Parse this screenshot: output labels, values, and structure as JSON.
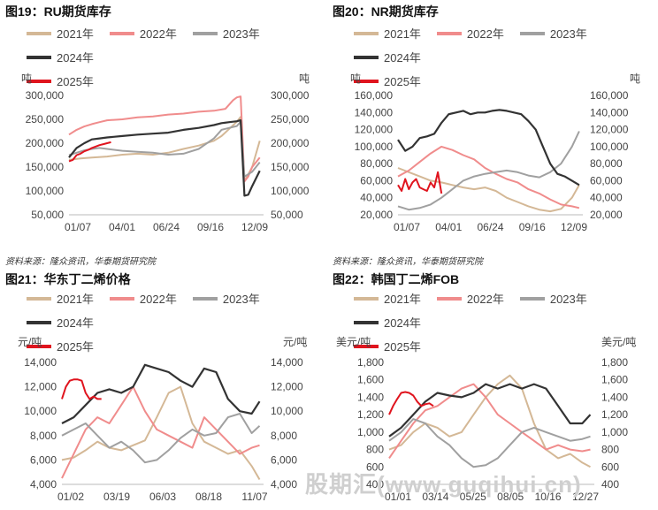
{
  "colors": {
    "2021": "#d4b896",
    "2022": "#f08c8c",
    "2023": "#a0a0a0",
    "2024": "#333333",
    "2025": "#e0141e"
  },
  "sources": [
    "资料来源：隆众资讯，华泰期货研究院",
    "资料来源：隆众资讯，华泰期货研究院"
  ],
  "watermark": "股期汇(www.guqihui.cn)",
  "chart_data": [
    {
      "type": "line",
      "title": "图19：RU期货库存",
      "unit_left": "吨",
      "unit_right": "吨",
      "legend": [
        "2021年",
        "2022年",
        "2023年",
        "2024年",
        "2025年"
      ],
      "ylim": [
        50000,
        300000
      ],
      "yticks": [
        "300,000",
        "250,000",
        "200,000",
        "150,000",
        "100,000",
        "50,000"
      ],
      "xticks": [
        "01/07",
        "04/01",
        "06/24",
        "09/16",
        "12/09"
      ],
      "xlim": [
        0,
        51
      ],
      "series": [
        {
          "name": "2021年",
          "x": [
            0,
            3,
            6,
            10,
            14,
            18,
            22,
            26,
            30,
            34,
            38,
            40,
            42,
            44,
            45,
            46,
            48,
            50
          ],
          "values": [
            165000,
            168000,
            170000,
            172000,
            176000,
            178000,
            176000,
            180000,
            188000,
            195000,
            205000,
            215000,
            230000,
            245000,
            255000,
            120000,
            150000,
            205000
          ]
        },
        {
          "name": "2022年",
          "x": [
            0,
            2,
            4,
            6,
            8,
            10,
            14,
            18,
            22,
            26,
            30,
            34,
            38,
            41,
            43,
            44,
            45,
            46,
            47,
            48,
            50
          ],
          "values": [
            218000,
            228000,
            235000,
            240000,
            244000,
            248000,
            250000,
            254000,
            256000,
            260000,
            262000,
            266000,
            268000,
            272000,
            290000,
            296000,
            298000,
            120000,
            130000,
            150000,
            170000
          ]
        },
        {
          "name": "2023年",
          "x": [
            0,
            2,
            4,
            6,
            8,
            10,
            14,
            18,
            22,
            26,
            30,
            34,
            38,
            40,
            42,
            44,
            45,
            46,
            48,
            50
          ],
          "values": [
            175000,
            180000,
            185000,
            188000,
            190000,
            188000,
            184000,
            182000,
            180000,
            176000,
            178000,
            188000,
            210000,
            228000,
            232000,
            236000,
            245000,
            130000,
            140000,
            160000
          ]
        },
        {
          "name": "2024年",
          "x": [
            0,
            2,
            4,
            6,
            8,
            10,
            14,
            18,
            22,
            26,
            30,
            34,
            38,
            40,
            42,
            44,
            45,
            46,
            47,
            48,
            50
          ],
          "values": [
            170000,
            190000,
            200000,
            208000,
            210000,
            212000,
            215000,
            218000,
            220000,
            222000,
            228000,
            232000,
            238000,
            242000,
            244000,
            246000,
            248000,
            90000,
            92000,
            110000,
            142000
          ]
        },
        {
          "name": "2025年",
          "x": [
            0,
            1,
            2,
            3,
            4,
            5,
            6,
            7,
            8,
            9,
            10,
            11
          ],
          "values": [
            162000,
            165000,
            175000,
            178000,
            183000,
            186000,
            190000,
            193000,
            196000,
            198000,
            200000,
            202000
          ]
        }
      ]
    },
    {
      "type": "line",
      "title": "图20：NR期货库存",
      "unit_left": "吨",
      "unit_right": "吨",
      "legend": [
        "2021年",
        "2022年",
        "2023年",
        "2024年",
        "2025年"
      ],
      "ylim": [
        20000,
        160000
      ],
      "yticks": [
        "160,000",
        "140,000",
        "120,000",
        "100,000",
        "80,000",
        "60,000",
        "40,000",
        "20,000"
      ],
      "xticks": [
        "01/07",
        "04/01",
        "06/24",
        "09/16",
        "12/09"
      ],
      "xlim": [
        0,
        51
      ],
      "series": [
        {
          "name": "2021年",
          "x": [
            0,
            3,
            6,
            9,
            12,
            15,
            18,
            21,
            24,
            27,
            30,
            33,
            36,
            39,
            42,
            45,
            48,
            50
          ],
          "values": [
            75000,
            70000,
            65000,
            60000,
            58000,
            55000,
            52000,
            50000,
            52000,
            48000,
            40000,
            35000,
            30000,
            26000,
            24000,
            27000,
            40000,
            55000
          ]
        },
        {
          "name": "2022年",
          "x": [
            0,
            3,
            6,
            9,
            12,
            15,
            18,
            21,
            24,
            27,
            30,
            33,
            36,
            39,
            42,
            45,
            48,
            50
          ],
          "values": [
            65000,
            72000,
            82000,
            92000,
            100000,
            96000,
            90000,
            85000,
            75000,
            68000,
            62000,
            58000,
            50000,
            45000,
            38000,
            32000,
            30000,
            28000
          ]
        },
        {
          "name": "2023年",
          "x": [
            0,
            3,
            6,
            9,
            12,
            15,
            18,
            21,
            24,
            27,
            30,
            33,
            36,
            39,
            42,
            45,
            48,
            50
          ],
          "values": [
            30000,
            26000,
            28000,
            32000,
            40000,
            50000,
            60000,
            65000,
            68000,
            70000,
            72000,
            70000,
            66000,
            64000,
            70000,
            80000,
            100000,
            118000
          ]
        },
        {
          "name": "2024年",
          "x": [
            0,
            2,
            4,
            6,
            8,
            10,
            12,
            14,
            16,
            18,
            20,
            22,
            24,
            26,
            28,
            30,
            32,
            34,
            36,
            38,
            40,
            42,
            44,
            46,
            48,
            50
          ],
          "values": [
            108000,
            95000,
            100000,
            110000,
            112000,
            115000,
            128000,
            138000,
            140000,
            142000,
            138000,
            140000,
            140000,
            142000,
            143000,
            142000,
            140000,
            138000,
            130000,
            120000,
            100000,
            80000,
            68000,
            65000,
            60000,
            55000
          ]
        },
        {
          "name": "2025年",
          "x": [
            0,
            1,
            2,
            3,
            4,
            5,
            6,
            7,
            8,
            9,
            10,
            11,
            12
          ],
          "values": [
            55000,
            48000,
            62000,
            50000,
            58000,
            62000,
            52000,
            50000,
            48000,
            58000,
            52000,
            70000,
            45000
          ]
        }
      ]
    },
    {
      "type": "line",
      "title": "图21：华东丁二烯价格",
      "unit_left": "元/吨",
      "unit_right": "元/吨",
      "legend": [
        "2021年",
        "2022年",
        "2023年",
        "2024年",
        "2025年"
      ],
      "ylim": [
        4000,
        14000
      ],
      "yticks": [
        "14,000",
        "12,000",
        "10,000",
        "8,000",
        "6,000",
        "4,000"
      ],
      "xticks": [
        "01/02",
        "03/19",
        "06/03",
        "08/18",
        "11/07"
      ],
      "xlim": [
        0,
        51
      ],
      "series": [
        {
          "name": "2021年",
          "x": [
            0,
            3,
            6,
            9,
            12,
            15,
            18,
            21,
            24,
            27,
            30,
            33,
            36,
            39,
            42,
            45,
            48,
            50
          ],
          "values": [
            6000,
            6200,
            6800,
            7500,
            7000,
            6800,
            7200,
            7600,
            9500,
            11500,
            12000,
            9000,
            7500,
            7000,
            6500,
            6800,
            5500,
            4400
          ]
        },
        {
          "name": "2022年",
          "x": [
            0,
            3,
            6,
            9,
            12,
            15,
            18,
            21,
            24,
            27,
            30,
            33,
            36,
            39,
            42,
            45,
            48,
            50
          ],
          "values": [
            4500,
            6500,
            8500,
            9500,
            9000,
            10500,
            12000,
            10000,
            8500,
            8000,
            7500,
            7000,
            9500,
            8500,
            7500,
            6500,
            7000,
            7200
          ]
        },
        {
          "name": "2023年",
          "x": [
            0,
            3,
            6,
            9,
            12,
            15,
            18,
            21,
            24,
            27,
            30,
            33,
            36,
            39,
            42,
            45,
            48,
            50
          ],
          "values": [
            8000,
            8500,
            9000,
            8000,
            7000,
            7500,
            6800,
            5800,
            6000,
            6800,
            7800,
            8500,
            8000,
            8200,
            9500,
            9800,
            8200,
            8800
          ]
        },
        {
          "name": "2024年",
          "x": [
            0,
            3,
            6,
            9,
            12,
            15,
            18,
            21,
            24,
            27,
            30,
            33,
            36,
            39,
            42,
            45,
            48,
            50
          ],
          "values": [
            9000,
            9500,
            10500,
            11500,
            11800,
            11500,
            12000,
            13800,
            13500,
            13200,
            12500,
            12000,
            13500,
            13200,
            11000,
            10000,
            9800,
            10800
          ]
        },
        {
          "name": "2025年",
          "x": [
            0,
            1,
            2,
            3,
            4,
            5,
            6,
            7,
            8,
            9,
            10
          ],
          "values": [
            11000,
            12000,
            12500,
            12600,
            12600,
            12500,
            11500,
            11000,
            11200,
            11000,
            11000
          ]
        }
      ]
    },
    {
      "type": "line",
      "title": "图22：韩国丁二烯FOB",
      "unit_left": "美元/吨",
      "unit_right": "美元/吨",
      "legend": [
        "2021年",
        "2022年",
        "2023年",
        "2024年",
        "2025年"
      ],
      "ylim": [
        400,
        1800
      ],
      "yticks": [
        "1,800",
        "1,600",
        "1,400",
        "1,200",
        "1,000",
        "800",
        "600",
        "400"
      ],
      "xticks": [
        "01/01",
        "03/14",
        "05/25",
        "08/05",
        "10/16",
        "12/27"
      ],
      "xlim": [
        0,
        51
      ],
      "series": [
        {
          "name": "2021年",
          "x": [
            0,
            3,
            6,
            9,
            12,
            15,
            18,
            21,
            24,
            27,
            30,
            33,
            36,
            39,
            42,
            45,
            48,
            50
          ],
          "values": [
            800,
            850,
            1000,
            1100,
            1050,
            950,
            1000,
            1200,
            1400,
            1550,
            1650,
            1500,
            1100,
            800,
            700,
            750,
            650,
            600
          ]
        },
        {
          "name": "2022年",
          "x": [
            0,
            3,
            6,
            9,
            12,
            15,
            18,
            21,
            24,
            27,
            30,
            33,
            36,
            39,
            42,
            45,
            48,
            50
          ],
          "values": [
            700,
            900,
            1100,
            1250,
            1300,
            1400,
            1500,
            1550,
            1400,
            1200,
            1100,
            1000,
            900,
            800,
            850,
            800,
            780,
            800
          ]
        },
        {
          "name": "2023年",
          "x": [
            0,
            3,
            6,
            9,
            12,
            15,
            18,
            21,
            24,
            27,
            30,
            33,
            36,
            39,
            42,
            45,
            48,
            50
          ],
          "values": [
            900,
            1000,
            1150,
            1100,
            950,
            850,
            700,
            600,
            620,
            700,
            850,
            1000,
            1050,
            1000,
            950,
            900,
            920,
            950
          ]
        },
        {
          "name": "2024年",
          "x": [
            0,
            3,
            6,
            9,
            12,
            15,
            18,
            21,
            24,
            27,
            30,
            33,
            36,
            39,
            42,
            45,
            48,
            50
          ],
          "values": [
            950,
            1050,
            1200,
            1350,
            1450,
            1420,
            1400,
            1450,
            1550,
            1500,
            1550,
            1500,
            1550,
            1500,
            1300,
            1100,
            1100,
            1200
          ]
        },
        {
          "name": "2025年",
          "x": [
            0,
            1,
            2,
            3,
            4,
            5,
            6,
            7,
            8,
            9,
            10,
            11
          ],
          "values": [
            1200,
            1300,
            1380,
            1450,
            1460,
            1450,
            1420,
            1350,
            1300,
            1320,
            1330,
            1300
          ]
        }
      ]
    }
  ]
}
